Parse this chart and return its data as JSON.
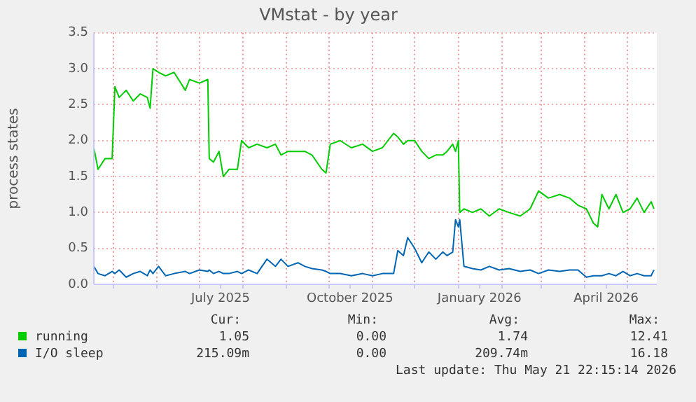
{
  "chart_data": {
    "type": "line",
    "title": "VMstat - by year",
    "ylabel": "process states",
    "x": [
      "2025-04-17",
      "2025-04-20",
      "2025-04-25",
      "2025-04-30",
      "2025-05-02",
      "2025-05-05",
      "2025-05-10",
      "2025-05-15",
      "2025-05-20",
      "2025-05-25",
      "2025-05-27",
      "2025-05-29",
      "2025-06-02",
      "2025-06-07",
      "2025-06-13",
      "2025-06-21",
      "2025-06-24",
      "2025-07-01",
      "2025-07-07",
      "2025-07-08",
      "2025-07-11",
      "2025-07-15",
      "2025-07-18",
      "2025-07-22",
      "2025-07-28",
      "2025-07-31",
      "2025-08-05",
      "2025-08-11",
      "2025-08-18",
      "2025-08-24",
      "2025-08-28",
      "2025-09-02",
      "2025-09-09",
      "2025-09-14",
      "2025-09-19",
      "2025-09-26",
      "2025-09-29",
      "2025-10-02",
      "2025-10-09",
      "2025-10-17",
      "2025-10-25",
      "2025-11-01",
      "2025-11-08",
      "2025-11-16",
      "2025-11-19",
      "2025-11-23",
      "2025-11-26",
      "2025-12-01",
      "2025-12-06",
      "2025-12-11",
      "2025-12-16",
      "2025-12-21",
      "2025-12-24",
      "2025-12-28",
      "2025-12-30",
      "2026-01-01",
      "2026-01-02",
      "2026-01-05",
      "2026-01-11",
      "2026-01-17",
      "2026-01-23",
      "2026-01-30",
      "2026-02-06",
      "2026-02-14",
      "2026-02-21",
      "2026-02-27",
      "2026-03-06",
      "2026-03-14",
      "2026-03-21",
      "2026-03-27",
      "2026-04-02",
      "2026-04-07",
      "2026-04-10",
      "2026-04-13",
      "2026-04-18",
      "2026-04-23",
      "2026-04-28",
      "2026-05-03",
      "2026-05-08",
      "2026-05-13",
      "2026-05-18",
      "2026-05-20"
    ],
    "series": [
      {
        "name": "running",
        "color": "#00cc00",
        "values": [
          1.9,
          1.6,
          1.75,
          1.75,
          2.75,
          2.6,
          2.7,
          2.55,
          2.65,
          2.6,
          2.45,
          3.0,
          2.95,
          2.9,
          2.95,
          2.7,
          2.85,
          2.8,
          2.85,
          1.75,
          1.7,
          1.85,
          1.5,
          1.6,
          1.6,
          2.0,
          1.9,
          1.95,
          1.9,
          1.95,
          1.8,
          1.85,
          1.85,
          1.85,
          1.8,
          1.6,
          1.55,
          1.95,
          2.0,
          1.9,
          1.95,
          1.85,
          1.9,
          2.1,
          2.05,
          1.95,
          2.0,
          2.0,
          1.85,
          1.75,
          1.8,
          1.8,
          1.85,
          1.95,
          1.85,
          2.0,
          1.0,
          1.05,
          1.0,
          1.05,
          0.95,
          1.05,
          1.0,
          0.95,
          1.05,
          1.3,
          1.2,
          1.25,
          1.2,
          1.1,
          1.05,
          0.85,
          0.8,
          1.25,
          1.05,
          1.25,
          1.0,
          1.05,
          1.2,
          1.0,
          1.15,
          1.05
        ]
      },
      {
        "name": "I/O sleep",
        "color": "#0066b3",
        "values": [
          0.25,
          0.15,
          0.12,
          0.18,
          0.15,
          0.2,
          0.1,
          0.15,
          0.18,
          0.12,
          0.2,
          0.15,
          0.25,
          0.12,
          0.15,
          0.18,
          0.15,
          0.2,
          0.18,
          0.2,
          0.15,
          0.18,
          0.15,
          0.15,
          0.18,
          0.15,
          0.2,
          0.15,
          0.35,
          0.25,
          0.35,
          0.25,
          0.3,
          0.25,
          0.22,
          0.2,
          0.18,
          0.15,
          0.15,
          0.12,
          0.15,
          0.12,
          0.15,
          0.15,
          0.47,
          0.4,
          0.65,
          0.5,
          0.3,
          0.45,
          0.35,
          0.45,
          0.4,
          0.45,
          0.9,
          0.8,
          0.9,
          0.25,
          0.22,
          0.2,
          0.25,
          0.2,
          0.22,
          0.18,
          0.2,
          0.15,
          0.2,
          0.18,
          0.2,
          0.2,
          0.1,
          0.12,
          0.12,
          0.12,
          0.15,
          0.12,
          0.18,
          0.12,
          0.15,
          0.12,
          0.12,
          0.2
        ]
      }
    ],
    "xlim": [
      "2025-04-17",
      "2026-05-22"
    ],
    "xticks": [
      {
        "value": "2025-05-01",
        "label": null
      },
      {
        "value": "2025-06-01",
        "label": null
      },
      {
        "value": "2025-07-01",
        "label": null
      },
      {
        "value": "2025-07-16",
        "label": "July 2025"
      },
      {
        "value": "2025-08-01",
        "label": null
      },
      {
        "value": "2025-09-01",
        "label": null
      },
      {
        "value": "2025-10-01",
        "label": null
      },
      {
        "value": "2025-10-16",
        "label": "October 2025"
      },
      {
        "value": "2025-11-01",
        "label": null
      },
      {
        "value": "2025-12-01",
        "label": null
      },
      {
        "value": "2026-01-01",
        "label": null
      },
      {
        "value": "2026-01-16",
        "label": "January 2026"
      },
      {
        "value": "2026-02-01",
        "label": null
      },
      {
        "value": "2026-03-01",
        "label": null
      },
      {
        "value": "2026-04-01",
        "label": null
      },
      {
        "value": "2026-04-16",
        "label": "April 2026"
      },
      {
        "value": "2026-05-01",
        "label": null
      }
    ],
    "ylim": [
      0,
      3.5
    ],
    "yticks": [
      {
        "value": 0,
        "label": "0.0"
      },
      {
        "value": 0.5,
        "label": "0.5"
      },
      {
        "value": 1,
        "label": "1.0"
      },
      {
        "value": 1.5,
        "label": "1.5"
      },
      {
        "value": 2,
        "label": "2.0"
      },
      {
        "value": 2.5,
        "label": "2.5"
      },
      {
        "value": 3,
        "label": "3.0"
      },
      {
        "value": 3.5,
        "label": "3.5"
      }
    ],
    "grid": true,
    "legend": "bottom",
    "marker": "none",
    "line_style": "solid",
    "annotations": [
      "Cur:",
      "Min:",
      "Avg:",
      "Max:",
      "1.05",
      "0.00",
      "1.74",
      "12.41",
      "215.09m",
      "0.00",
      "209.74m",
      "16.18",
      "Last update: Thu May 21 22:15:14 2026"
    ]
  }
}
